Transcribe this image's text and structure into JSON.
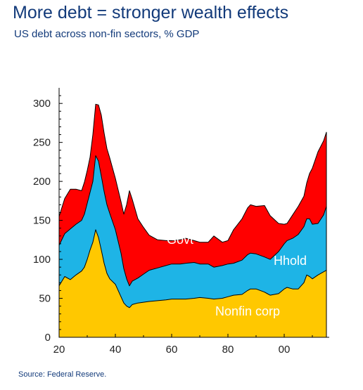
{
  "title": "More debt = stronger wealth effects",
  "subtitle": "US debt across non-fin sectors, % GDP",
  "source": "Source: Federal Reserve.",
  "colors": {
    "nonfin_corp": "#ffc800",
    "hhold": "#1eb4e6",
    "govt": "#ff0000"
  },
  "chart_data": {
    "type": "area",
    "stacked": true,
    "xlim": [
      1920,
      2016
    ],
    "ylim": [
      0,
      320
    ],
    "grid": false,
    "x_ticks": [
      1920,
      1940,
      1960,
      1980,
      2000
    ],
    "x_tick_labels": [
      "20",
      "40",
      "60",
      "80",
      "00"
    ],
    "y_ticks": [
      0,
      50,
      100,
      150,
      200,
      250,
      300
    ],
    "y_tick_labels": [
      "0",
      "50",
      "100",
      "150",
      "200",
      "250",
      "300"
    ],
    "x": [
      1920,
      1922,
      1924,
      1926,
      1928,
      1929,
      1930,
      1931,
      1932,
      1933,
      1934,
      1935,
      1936,
      1937,
      1938,
      1940,
      1942,
      1943,
      1944,
      1945,
      1946,
      1948,
      1950,
      1952,
      1955,
      1958,
      1960,
      1963,
      1965,
      1968,
      1970,
      1973,
      1975,
      1978,
      1980,
      1982,
      1985,
      1987,
      1988,
      1990,
      1993,
      1995,
      1998,
      2000,
      2001,
      2003,
      2005,
      2007,
      2008,
      2009,
      2010,
      2012,
      2014,
      2015
    ],
    "series": [
      {
        "name": "Nonfin corp",
        "values": [
          66,
          78,
          74,
          80,
          85,
          90,
          100,
          112,
          122,
          138,
          128,
          112,
          95,
          82,
          75,
          68,
          52,
          44,
          40,
          38,
          42,
          44,
          45,
          46,
          47,
          48,
          49,
          49,
          49,
          50,
          51,
          50,
          49,
          50,
          52,
          54,
          55,
          60,
          62,
          62,
          58,
          54,
          56,
          62,
          64,
          62,
          62,
          70,
          80,
          78,
          75,
          80,
          84,
          86
        ]
      },
      {
        "name": "Hhold",
        "values": [
          52,
          55,
          65,
          65,
          65,
          68,
          72,
          74,
          78,
          95,
          98,
          95,
          92,
          88,
          84,
          70,
          56,
          44,
          35,
          28,
          30,
          32,
          36,
          40,
          42,
          44,
          45,
          45,
          46,
          46,
          43,
          44,
          41,
          42,
          42,
          41,
          44,
          46,
          46,
          45,
          45,
          46,
          54,
          58,
          60,
          65,
          70,
          72,
          72,
          74,
          70,
          66,
          73,
          82
        ]
      },
      {
        "name": "Govt",
        "values": [
          37,
          45,
          51,
          45,
          38,
          41,
          42,
          45,
          60,
          66,
          72,
          78,
          75,
          72,
          71,
          66,
          66,
          70,
          95,
          122,
          105,
          76,
          60,
          45,
          36,
          32,
          30,
          31,
          32,
          28,
          28,
          28,
          40,
          30,
          30,
          43,
          53,
          60,
          62,
          61,
          66,
          56,
          36,
          25,
          22,
          30,
          36,
          39,
          46,
          58,
          72,
          92,
          95,
          95
        ]
      }
    ]
  },
  "labels": {
    "govt": "Govt",
    "hhold": "Hhold",
    "nonfin": "Nonfin corp"
  }
}
